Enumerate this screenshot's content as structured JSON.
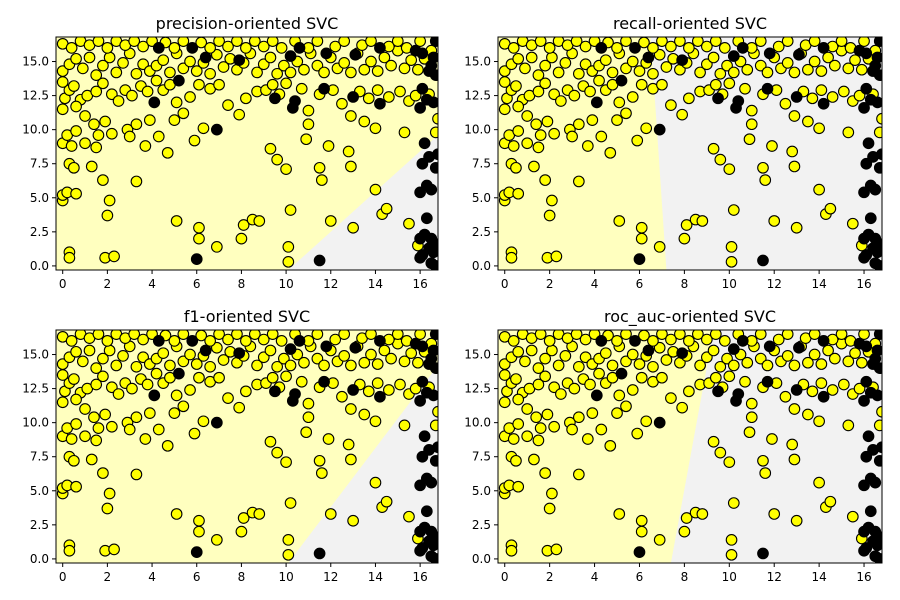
{
  "chart_data": [
    {
      "type": "scatter",
      "title": "precision-oriented SVC",
      "xlabel": "",
      "ylabel": "",
      "xlim": [
        -0.3,
        16.8
      ],
      "ylim": [
        -0.3,
        16.8
      ],
      "xticks": [
        0,
        2,
        4,
        6,
        8,
        10,
        12,
        14,
        16
      ],
      "yticks": [
        0.0,
        2.5,
        5.0,
        7.5,
        10.0,
        12.5,
        15.0
      ],
      "ytick_labels": [
        "0.0",
        "2.5",
        "5.0",
        "7.5",
        "10.0",
        "12.5",
        "15.0"
      ],
      "grid": false,
      "regions": {
        "class_0_color": "#ffffbf",
        "class_1_color": "#f2f2f2",
        "boundary": [
          [
            10.1,
            -0.3
          ],
          [
            16.8,
            9.6
          ]
        ]
      },
      "series": [
        {
          "class": 0,
          "color": "#ffff00"
        },
        {
          "class": 1,
          "color": "#000000"
        }
      ]
    },
    {
      "type": "scatter",
      "title": "recall-oriented SVC",
      "xlabel": "",
      "ylabel": "",
      "xlim": [
        -0.3,
        16.8
      ],
      "ylim": [
        -0.3,
        16.8
      ],
      "xticks": [
        0,
        2,
        4,
        6,
        8,
        10,
        12,
        14,
        16
      ],
      "yticks": [
        0.0,
        2.5,
        5.0,
        7.5,
        10.0,
        12.5,
        15.0
      ],
      "ytick_labels": [
        "0.0",
        "2.5",
        "5.0",
        "7.5",
        "10.0",
        "12.5",
        "15.0"
      ],
      "grid": false,
      "regions": {
        "class_0_color": "#ffffbf",
        "class_1_color": "#f2f2f2",
        "boundary": [
          [
            7.2,
            -0.3
          ],
          [
            6.5,
            16.8
          ]
        ]
      },
      "series": [
        {
          "class": 0,
          "color": "#ffff00"
        },
        {
          "class": 1,
          "color": "#000000"
        }
      ]
    },
    {
      "type": "scatter",
      "title": "f1-oriented SVC",
      "xlabel": "",
      "ylabel": "",
      "xlim": [
        -0.3,
        16.8
      ],
      "ylim": [
        -0.3,
        16.8
      ],
      "xticks": [
        0,
        2,
        4,
        6,
        8,
        10,
        12,
        14,
        16
      ],
      "yticks": [
        0.0,
        2.5,
        5.0,
        7.5,
        10.0,
        12.5,
        15.0
      ],
      "ytick_labels": [
        "0.0",
        "2.5",
        "5.0",
        "7.5",
        "10.0",
        "12.5",
        "15.0"
      ],
      "grid": false,
      "regions": {
        "class_0_color": "#ffffbf",
        "class_1_color": "#f2f2f2",
        "boundary": [
          [
            10.1,
            -0.3
          ],
          [
            16.8,
            14.2
          ]
        ]
      },
      "series": [
        {
          "class": 0,
          "color": "#ffff00"
        },
        {
          "class": 1,
          "color": "#000000"
        }
      ]
    },
    {
      "type": "scatter",
      "title": "roc_auc-oriented SVC",
      "xlabel": "",
      "ylabel": "",
      "xlim": [
        -0.3,
        16.8
      ],
      "ylim": [
        -0.3,
        16.8
      ],
      "xticks": [
        0,
        2,
        4,
        6,
        8,
        10,
        12,
        14,
        16
      ],
      "yticks": [
        0.0,
        2.5,
        5.0,
        7.5,
        10.0,
        12.5,
        15.0
      ],
      "ytick_labels": [
        "0.0",
        "2.5",
        "5.0",
        "7.5",
        "10.0",
        "12.5",
        "15.0"
      ],
      "grid": false,
      "regions": {
        "class_0_color": "#ffffbf",
        "class_1_color": "#f2f2f2",
        "boundary": [
          [
            7.4,
            -0.3
          ],
          [
            9.3,
            16.8
          ]
        ]
      },
      "series": [
        {
          "class": 0,
          "color": "#ffff00"
        },
        {
          "class": 1,
          "color": "#000000"
        }
      ]
    }
  ],
  "points": {
    "class_1": [
      [
        6.0,
        0.5
      ],
      [
        11.5,
        0.4
      ],
      [
        16.0,
        0.6
      ],
      [
        16.1,
        0.8
      ],
      [
        16.5,
        0.2
      ],
      [
        16.7,
        0.0
      ],
      [
        16.6,
        1.0
      ],
      [
        16.4,
        1.3
      ],
      [
        16.7,
        1.6
      ],
      [
        16.0,
        2.0
      ],
      [
        16.2,
        2.3
      ],
      [
        16.5,
        2.0
      ],
      [
        16.3,
        3.5
      ],
      [
        16.0,
        5.4
      ],
      [
        16.3,
        5.9
      ],
      [
        16.5,
        5.6
      ],
      [
        16.4,
        8.0
      ],
      [
        16.7,
        7.2
      ],
      [
        16.1,
        7.5
      ],
      [
        16.8,
        8.2
      ],
      [
        16.2,
        9.0
      ],
      [
        4.1,
        12.0
      ],
      [
        10.3,
        11.6
      ],
      [
        10.4,
        12.1
      ],
      [
        11.7,
        13.0
      ],
      [
        13.0,
        12.4
      ],
      [
        14.2,
        11.9
      ],
      [
        16.0,
        11.6
      ],
      [
        16.3,
        12.2
      ],
      [
        16.6,
        12.0
      ],
      [
        16.1,
        13.0
      ],
      [
        16.4,
        14.3
      ],
      [
        16.7,
        14.0
      ],
      [
        16.5,
        14.7
      ],
      [
        16.1,
        15.6
      ],
      [
        16.6,
        15.3
      ],
      [
        4.3,
        16.0
      ],
      [
        5.8,
        16.0
      ],
      [
        6.4,
        15.3
      ],
      [
        7.9,
        15.1
      ],
      [
        10.2,
        15.4
      ],
      [
        10.6,
        16.0
      ],
      [
        11.8,
        15.6
      ],
      [
        13.1,
        15.5
      ],
      [
        14.2,
        16.0
      ],
      [
        15.8,
        15.8
      ],
      [
        16.7,
        16.5
      ],
      [
        6.9,
        10.0
      ],
      [
        5.2,
        13.6
      ],
      [
        9.5,
        12.3
      ]
    ],
    "class_0": [
      [
        0.0,
        4.8
      ],
      [
        0.0,
        5.2
      ],
      [
        0.2,
        5.4
      ],
      [
        0.3,
        1.0
      ],
      [
        0.3,
        0.6
      ],
      [
        0.6,
        5.3
      ],
      [
        0.3,
        7.5
      ],
      [
        0.0,
        9.0
      ],
      [
        0.2,
        9.6
      ],
      [
        0.4,
        8.8
      ],
      [
        0.6,
        9.9
      ],
      [
        0.5,
        7.2
      ],
      [
        1.0,
        9.0
      ],
      [
        1.3,
        7.3
      ],
      [
        1.5,
        8.7
      ],
      [
        1.6,
        9.6
      ],
      [
        1.4,
        10.4
      ],
      [
        1.9,
        10.6
      ],
      [
        2.2,
        9.7
      ],
      [
        1.8,
        6.3
      ],
      [
        2.1,
        4.8
      ],
      [
        2.0,
        3.7
      ],
      [
        1.9,
        0.6
      ],
      [
        2.3,
        0.7
      ],
      [
        2.9,
        10.0
      ],
      [
        3.0,
        9.5
      ],
      [
        3.3,
        10.4
      ],
      [
        3.7,
        8.8
      ],
      [
        3.9,
        10.7
      ],
      [
        3.3,
        6.2
      ],
      [
        4.3,
        9.5
      ],
      [
        4.7,
        8.3
      ],
      [
        5.0,
        10.7
      ],
      [
        5.4,
        11.2
      ],
      [
        5.9,
        9.2
      ],
      [
        6.3,
        10.1
      ],
      [
        5.1,
        3.3
      ],
      [
        6.1,
        2.8
      ],
      [
        6.1,
        2.0
      ],
      [
        6.9,
        1.4
      ],
      [
        8.1,
        3.0
      ],
      [
        8.0,
        2.0
      ],
      [
        8.5,
        3.4
      ],
      [
        8.8,
        3.3
      ],
      [
        9.3,
        8.6
      ],
      [
        9.6,
        7.8
      ],
      [
        10.0,
        7.1
      ],
      [
        10.2,
        4.1
      ],
      [
        10.1,
        0.3
      ],
      [
        10.1,
        1.4
      ],
      [
        10.9,
        9.3
      ],
      [
        11.0,
        10.4
      ],
      [
        11.5,
        7.2
      ],
      [
        11.6,
        6.3
      ],
      [
        11.9,
        8.8
      ],
      [
        12.0,
        3.3
      ],
      [
        12.8,
        8.4
      ],
      [
        12.9,
        7.3
      ],
      [
        13.0,
        2.8
      ],
      [
        13.5,
        10.6
      ],
      [
        14.0,
        10.1
      ],
      [
        14.3,
        3.8
      ],
      [
        14.5,
        4.2
      ],
      [
        14.0,
        5.6
      ],
      [
        15.3,
        9.8
      ],
      [
        15.5,
        3.1
      ],
      [
        15.9,
        1.5
      ],
      [
        16.7,
        9.8
      ],
      [
        16.8,
        10.8
      ],
      [
        0.0,
        11.5
      ],
      [
        0.1,
        12.3
      ],
      [
        0.3,
        12.9
      ],
      [
        0.0,
        13.5
      ],
      [
        0.5,
        13.2
      ],
      [
        0.8,
        12.2
      ],
      [
        0.6,
        11.7
      ],
      [
        1.1,
        12.5
      ],
      [
        1.0,
        11.0
      ],
      [
        1.5,
        12.8
      ],
      [
        1.8,
        13.4
      ],
      [
        2.2,
        12.6
      ],
      [
        2.5,
        12.1
      ],
      [
        2.8,
        12.9
      ],
      [
        3.1,
        12.5
      ],
      [
        3.5,
        13.2
      ],
      [
        3.8,
        12.8
      ],
      [
        4.2,
        13.6
      ],
      [
        4.5,
        12.9
      ],
      [
        4.8,
        13.3
      ],
      [
        5.1,
        12.0
      ],
      [
        5.7,
        12.4
      ],
      [
        6.1,
        13.3
      ],
      [
        6.6,
        13.0
      ],
      [
        7.0,
        13.3
      ],
      [
        7.4,
        11.8
      ],
      [
        7.9,
        11.1
      ],
      [
        8.2,
        12.3
      ],
      [
        8.7,
        12.8
      ],
      [
        9.1,
        12.9
      ],
      [
        9.4,
        13.3
      ],
      [
        9.7,
        12.6
      ],
      [
        10.0,
        13.4
      ],
      [
        10.7,
        13.0
      ],
      [
        11.0,
        11.4
      ],
      [
        11.5,
        12.6
      ],
      [
        12.1,
        12.9
      ],
      [
        12.5,
        11.9
      ],
      [
        12.9,
        11.0
      ],
      [
        13.3,
        12.8
      ],
      [
        13.7,
        12.3
      ],
      [
        14.1,
        12.9
      ],
      [
        14.6,
        12.4
      ],
      [
        15.1,
        12.8
      ],
      [
        15.5,
        12.1
      ],
      [
        15.8,
        12.5
      ],
      [
        16.4,
        12.6
      ],
      [
        0.0,
        14.3
      ],
      [
        0.3,
        14.8
      ],
      [
        0.6,
        15.2
      ],
      [
        0.9,
        14.5
      ],
      [
        1.2,
        15.3
      ],
      [
        1.5,
        14.0
      ],
      [
        1.8,
        14.7
      ],
      [
        2.1,
        15.3
      ],
      [
        2.4,
        14.2
      ],
      [
        2.7,
        14.9
      ],
      [
        3.0,
        15.6
      ],
      [
        3.3,
        14.1
      ],
      [
        3.6,
        14.8
      ],
      [
        3.9,
        14.3
      ],
      [
        4.2,
        14.7
      ],
      [
        4.5,
        15.1
      ],
      [
        4.8,
        14.2
      ],
      [
        5.1,
        15.6
      ],
      [
        5.4,
        14.5
      ],
      [
        5.7,
        15.0
      ],
      [
        6.0,
        14.3
      ],
      [
        6.3,
        14.9
      ],
      [
        6.6,
        14.1
      ],
      [
        6.9,
        15.5
      ],
      [
        7.2,
        14.6
      ],
      [
        7.5,
        15.2
      ],
      [
        7.8,
        14.4
      ],
      [
        8.1,
        14.9
      ],
      [
        8.4,
        15.6
      ],
      [
        8.7,
        14.2
      ],
      [
        9.0,
        14.8
      ],
      [
        9.3,
        15.3
      ],
      [
        9.6,
        14.1
      ],
      [
        9.9,
        14.7
      ],
      [
        10.2,
        14.2
      ],
      [
        10.5,
        15.0
      ],
      [
        10.8,
        14.4
      ],
      [
        11.1,
        15.6
      ],
      [
        11.4,
        14.7
      ],
      [
        11.7,
        14.2
      ],
      [
        12.0,
        15.3
      ],
      [
        12.3,
        14.5
      ],
      [
        12.6,
        14.9
      ],
      [
        12.9,
        14.2
      ],
      [
        13.2,
        15.6
      ],
      [
        13.5,
        14.4
      ],
      [
        13.8,
        15.0
      ],
      [
        14.1,
        14.3
      ],
      [
        14.4,
        15.3
      ],
      [
        14.7,
        14.7
      ],
      [
        15.0,
        15.8
      ],
      [
        15.3,
        14.5
      ],
      [
        15.6,
        15.1
      ],
      [
        15.9,
        14.4
      ],
      [
        16.2,
        15.2
      ],
      [
        16.5,
        15.8
      ],
      [
        0.0,
        16.3
      ],
      [
        0.4,
        16.0
      ],
      [
        0.8,
        16.5
      ],
      [
        1.2,
        16.2
      ],
      [
        1.6,
        16.5
      ],
      [
        2.0,
        16.0
      ],
      [
        2.4,
        16.5
      ],
      [
        2.8,
        16.2
      ],
      [
        3.2,
        16.5
      ],
      [
        3.6,
        16.1
      ],
      [
        4.0,
        16.5
      ],
      [
        4.6,
        16.4
      ],
      [
        5.0,
        16.0
      ],
      [
        5.4,
        16.5
      ],
      [
        6.2,
        16.4
      ],
      [
        6.6,
        16.0
      ],
      [
        7.0,
        16.5
      ],
      [
        7.4,
        16.1
      ],
      [
        7.8,
        16.5
      ],
      [
        8.2,
        16.0
      ],
      [
        8.6,
        16.5
      ],
      [
        9.0,
        16.1
      ],
      [
        9.4,
        16.5
      ],
      [
        9.8,
        16.0
      ],
      [
        10.4,
        16.5
      ],
      [
        11.0,
        16.0
      ],
      [
        11.4,
        16.5
      ],
      [
        12.2,
        16.1
      ],
      [
        12.6,
        16.5
      ],
      [
        13.4,
        16.2
      ],
      [
        13.8,
        16.5
      ],
      [
        14.6,
        16.1
      ],
      [
        15.0,
        16.5
      ],
      [
        15.4,
        16.0
      ],
      [
        16.0,
        16.5
      ]
    ]
  }
}
